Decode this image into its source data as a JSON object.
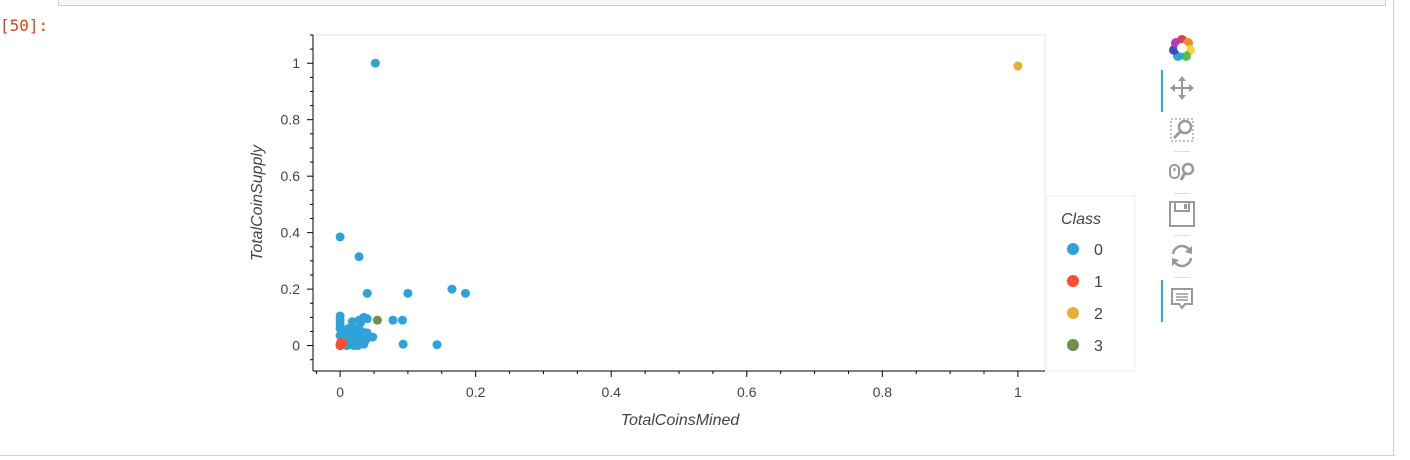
{
  "notebook": {
    "prompt": "[50]:"
  },
  "chart_data": {
    "type": "scatter",
    "xlabel": "TotalCoinsMined",
    "ylabel": "TotalCoinSupply",
    "xlim": [
      -0.04,
      1.04
    ],
    "ylim": [
      -0.09,
      1.1
    ],
    "x_ticks": [
      0,
      0.2,
      0.4,
      0.6,
      0.8,
      1
    ],
    "y_ticks": [
      0,
      0.2,
      0.4,
      0.6,
      0.8,
      1
    ],
    "legend_title": "Class",
    "legend_position": "right",
    "grid": false,
    "series": [
      {
        "name": "0",
        "color": "#30a2da",
        "points": [
          [
            0.052,
            1.0
          ],
          [
            0.0,
            0.385
          ],
          [
            0.028,
            0.315
          ],
          [
            0.04,
            0.185
          ],
          [
            0.1,
            0.185
          ],
          [
            0.165,
            0.2
          ],
          [
            0.185,
            0.185
          ],
          [
            0.078,
            0.09
          ],
          [
            0.092,
            0.09
          ],
          [
            0.04,
            0.095
          ],
          [
            0.035,
            0.1
          ],
          [
            0.028,
            0.09
          ],
          [
            0.03,
            0.08
          ],
          [
            0.018,
            0.085
          ],
          [
            0.0,
            0.105
          ],
          [
            0.0,
            0.09
          ],
          [
            0.0,
            0.075
          ],
          [
            0.005,
            0.055
          ],
          [
            0.01,
            0.045
          ],
          [
            0.015,
            0.05
          ],
          [
            0.02,
            0.06
          ],
          [
            0.025,
            0.055
          ],
          [
            0.032,
            0.05
          ],
          [
            0.04,
            0.045
          ],
          [
            0.048,
            0.03
          ],
          [
            0.0,
            0.035
          ],
          [
            0.005,
            0.02
          ],
          [
            0.012,
            0.015
          ],
          [
            0.018,
            0.025
          ],
          [
            0.025,
            0.02
          ],
          [
            0.03,
            0.015
          ],
          [
            0.035,
            0.005
          ],
          [
            0.02,
            0.0
          ],
          [
            0.015,
            0.005
          ],
          [
            0.01,
            0.0
          ],
          [
            0.005,
            0.01
          ],
          [
            0.028,
            0.035
          ],
          [
            0.022,
            0.01
          ],
          [
            0.003,
            0.045
          ],
          [
            0.008,
            0.03
          ],
          [
            0.093,
            0.005
          ],
          [
            0.143,
            0.003
          ],
          [
            0.016,
            0.04
          ],
          [
            0.034,
            0.03
          ],
          [
            0.0,
            0.06
          ],
          [
            0.026,
            0.0
          ],
          [
            0.012,
            0.06
          ],
          [
            0.038,
            0.02
          ],
          [
            0.0,
            0.0
          ]
        ]
      },
      {
        "name": "1",
        "color": "#fc4f30",
        "points": [
          [
            0.0,
            0.005
          ],
          [
            0.002,
            0.002
          ],
          [
            0.0,
            0.0
          ],
          [
            0.004,
            0.008
          ],
          [
            0.001,
            0.012
          ]
        ]
      },
      {
        "name": "2",
        "color": "#e5ae38",
        "points": [
          [
            1.0,
            0.99
          ]
        ]
      },
      {
        "name": "3",
        "color": "#6d904f",
        "points": [
          [
            0.055,
            0.09
          ]
        ]
      }
    ]
  },
  "toolbar": {
    "logo_icon": "bokeh-logo-icon",
    "tools": [
      "pan-icon",
      "box-zoom-icon",
      "wheel-zoom-icon",
      "save-icon",
      "reset-icon",
      "hover-icon"
    ]
  }
}
